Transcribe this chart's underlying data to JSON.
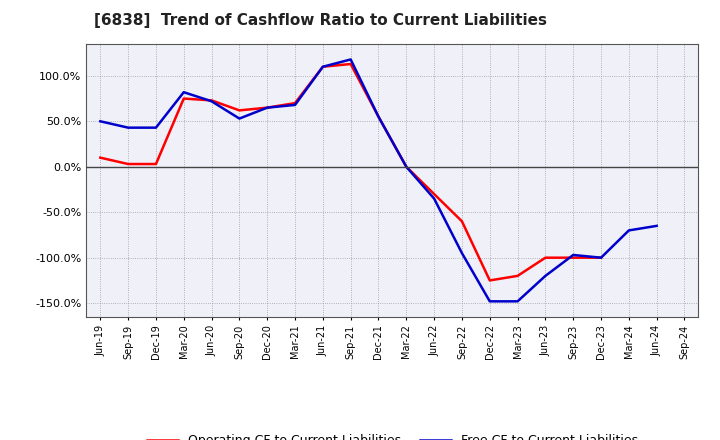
{
  "title": "[6838]  Trend of Cashflow Ratio to Current Liabilities",
  "x_labels": [
    "Jun-19",
    "Sep-19",
    "Dec-19",
    "Mar-20",
    "Jun-20",
    "Sep-20",
    "Dec-20",
    "Mar-21",
    "Jun-21",
    "Sep-21",
    "Dec-21",
    "Mar-22",
    "Jun-22",
    "Sep-22",
    "Dec-22",
    "Mar-23",
    "Jun-23",
    "Sep-23",
    "Dec-23",
    "Mar-24",
    "Jun-24",
    "Sep-24"
  ],
  "operating_cf_data": {
    "Jun-19": 10.0,
    "Sep-19": 3.0,
    "Dec-19": 3.0,
    "Mar-20": 75.0,
    "Jun-20": 73.0,
    "Sep-20": 62.0,
    "Dec-20": 65.0,
    "Mar-21": 70.0,
    "Jun-21": 110.0,
    "Sep-21": 113.0,
    "Dec-21": 55.0,
    "Mar-22": 0.0,
    "Jun-22": -30.0,
    "Sep-22": -60.0,
    "Dec-22": -125.0,
    "Mar-23": -120.0,
    "Jun-23": -100.0,
    "Sep-23": -100.0,
    "Dec-23": -100.0
  },
  "free_cf_data": {
    "Jun-19": 50.0,
    "Sep-19": 43.0,
    "Dec-19": 43.0,
    "Mar-20": 82.0,
    "Jun-20": 72.0,
    "Sep-20": 53.0,
    "Dec-20": 65.0,
    "Mar-21": 68.0,
    "Jun-21": 110.0,
    "Sep-21": 118.0,
    "Dec-21": 55.0,
    "Mar-22": 0.0,
    "Jun-22": -35.0,
    "Sep-22": -95.0,
    "Dec-22": -148.0,
    "Mar-23": -148.0,
    "Jun-23": -120.0,
    "Sep-23": -97.0,
    "Dec-23": -100.0,
    "Mar-24": -70.0,
    "Jun-24": -65.0
  },
  "operating_color": "#ff0000",
  "free_color": "#0000cc",
  "ylim": [
    -165,
    135
  ],
  "yticks": [
    -150.0,
    -100.0,
    -50.0,
    0.0,
    50.0,
    100.0
  ],
  "bg_color": "#ffffff",
  "plot_bg_color": "#f0f0f8",
  "grid_color": "#888888",
  "legend_op": "Operating CF to Current Liabilities",
  "legend_free": "Free CF to Current Liabilities"
}
